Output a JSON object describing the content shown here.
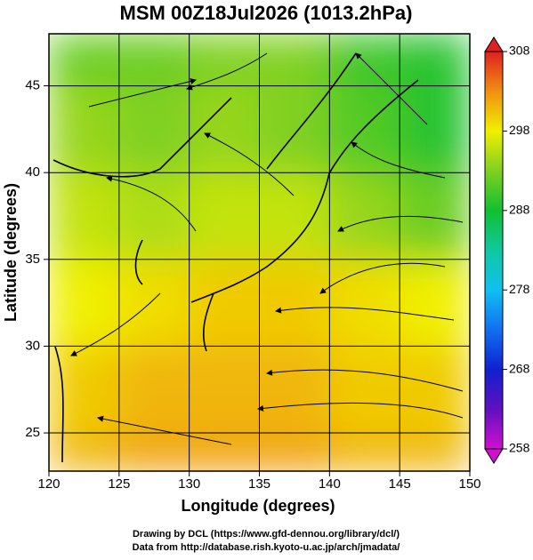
{
  "chart_data": {
    "type": "heatmap",
    "title": "MSM 00Z18Jul2026 (1013.2hPa)",
    "x_label": "Longitude (degrees)",
    "y_label": "Latitude  (degrees)",
    "xlim": [
      120,
      150
    ],
    "xticks": [
      120,
      125,
      130,
      135,
      140,
      145,
      150
    ],
    "ylim": [
      22.8,
      48.0
    ],
    "yticks": [
      25,
      30,
      35,
      40,
      45
    ],
    "grid": true,
    "values": [
      [
        301,
        302,
        302,
        302,
        301,
        301
      ],
      [
        300,
        301,
        301,
        301,
        300,
        300
      ],
      [
        298,
        299,
        300,
        300,
        299,
        298
      ],
      [
        296,
        295,
        296,
        296,
        294,
        292
      ],
      [
        294,
        293,
        294,
        293,
        291,
        289
      ],
      [
        292,
        292,
        293,
        293,
        290,
        289
      ]
    ],
    "colorbar": {
      "lim": [
        258,
        308
      ],
      "ticks": [
        258,
        268,
        278,
        288,
        298,
        308
      ],
      "colors": [
        "#d010d0",
        "#6010c0",
        "#1020d0",
        "#1070f0",
        "#10c0f0",
        "#10c8a0",
        "#10c030",
        "#80d020",
        "#f0f000",
        "#f09010",
        "#e02020"
      ]
    }
  },
  "footer": {
    "lines": [
      "Drawing by DCL (https://www.gfd-dennou.org/library/dcl/)",
      "Data from http://database.rish.kyoto-u.ac.jp/arch/jmadata/"
    ]
  }
}
